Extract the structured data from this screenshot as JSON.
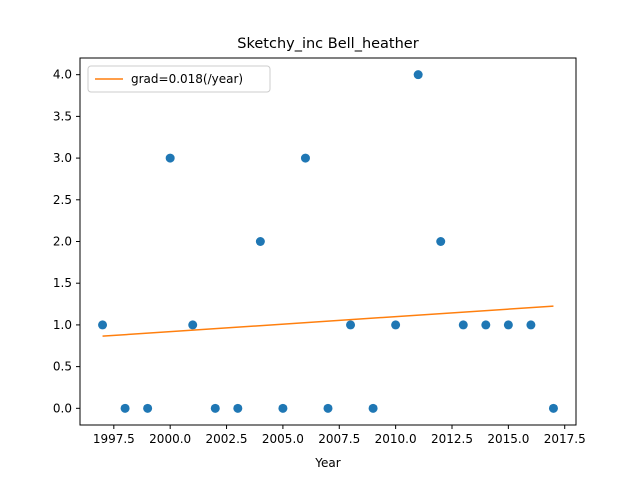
{
  "chart_data": {
    "type": "scatter",
    "title": "Sketchy_inc Bell_heather",
    "xlabel": "Year",
    "ylabel": "",
    "xlim": [
      1996.0,
      2018.0
    ],
    "ylim": [
      -0.2,
      4.2
    ],
    "x_ticks": [
      1997.5,
      2000.0,
      2002.5,
      2005.0,
      2007.5,
      2010.0,
      2012.5,
      2015.0,
      2017.5
    ],
    "x_tick_labels": [
      "1997.5",
      "2000.0",
      "2002.5",
      "2005.0",
      "2007.5",
      "2010.0",
      "2012.5",
      "2015.0",
      "2017.5"
    ],
    "y_ticks": [
      0.0,
      0.5,
      1.0,
      1.5,
      2.0,
      2.5,
      3.0,
      3.5,
      4.0
    ],
    "y_tick_labels": [
      "0.0",
      "0.5",
      "1.0",
      "1.5",
      "2.0",
      "2.5",
      "3.0",
      "3.5",
      "4.0"
    ],
    "grid": false,
    "legend_position": "top-left",
    "series": [
      {
        "kind": "scatter",
        "color": "#1f77b4",
        "x": [
          1997,
          1998,
          1999,
          2000,
          2001,
          2002,
          2003,
          2004,
          2005,
          2006,
          2007,
          2008,
          2009,
          2010,
          2011,
          2012,
          2013,
          2014,
          2015,
          2016,
          2017
        ],
        "y": [
          1,
          0,
          0,
          3,
          1,
          0,
          0,
          2,
          0,
          3,
          0,
          1,
          0,
          1,
          4,
          2,
          1,
          1,
          1,
          1,
          0
        ]
      },
      {
        "kind": "line",
        "name": "grad=0.018(/year)",
        "color": "#ff7f0e",
        "x": [
          1997,
          2017
        ],
        "y": [
          0.865,
          1.225
        ]
      }
    ]
  }
}
